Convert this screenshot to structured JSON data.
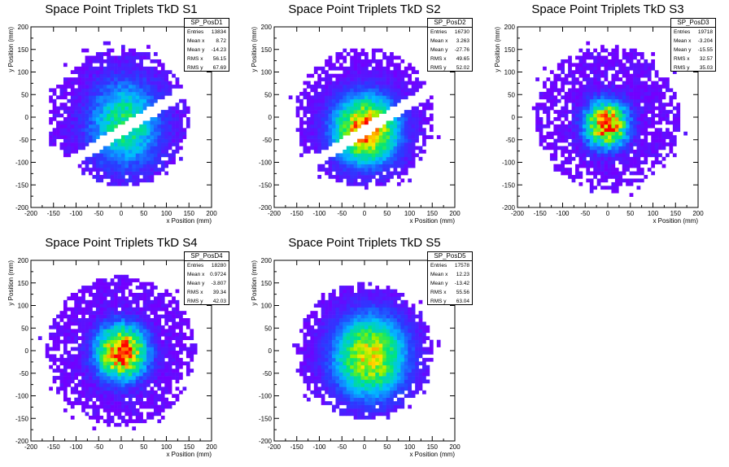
{
  "chart_data": [
    {
      "type": "heatmap",
      "title": "Space Point Triplets TkD S1",
      "xlabel": "x Position (mm)",
      "ylabel": "y Position (mm)",
      "xlim": [
        -200,
        200
      ],
      "ylim": [
        -200,
        200
      ],
      "xticks": [
        -200,
        -150,
        -100,
        -50,
        0,
        50,
        100,
        150,
        200
      ],
      "yticks": [
        -200,
        -150,
        -100,
        -50,
        0,
        50,
        100,
        150,
        200
      ],
      "stats": {
        "name": "SP_PosD1",
        "rows": [
          {
            "label": "Entries",
            "value": "13834"
          },
          {
            "label": "Mean x",
            "value": "8.72"
          },
          {
            "label": "Mean y",
            "value": "-14.23"
          },
          {
            "label": "RMS x",
            "value": "56.15"
          },
          {
            "label": "RMS y",
            "value": "67.69"
          }
        ]
      }
    },
    {
      "type": "heatmap",
      "title": "Space Point Triplets TkD S2",
      "xlabel": "x Position (mm)",
      "ylabel": "y Position (mm)",
      "xlim": [
        -200,
        200
      ],
      "ylim": [
        -200,
        200
      ],
      "xticks": [
        -200,
        -150,
        -100,
        -50,
        0,
        50,
        100,
        150,
        200
      ],
      "yticks": [
        -200,
        -150,
        -100,
        -50,
        0,
        50,
        100,
        150,
        200
      ],
      "stats": {
        "name": "SP_PosD2",
        "rows": [
          {
            "label": "Entries",
            "value": "16730"
          },
          {
            "label": "Mean x",
            "value": "3.263"
          },
          {
            "label": "Mean y",
            "value": "-27.76"
          },
          {
            "label": "RMS x",
            "value": "49.65"
          },
          {
            "label": "RMS y",
            "value": "52.02"
          }
        ]
      }
    },
    {
      "type": "heatmap",
      "title": "Space Point Triplets TkD S3",
      "xlabel": "x Position (mm)",
      "ylabel": "y Position (mm)",
      "xlim": [
        -200,
        200
      ],
      "ylim": [
        -200,
        200
      ],
      "xticks": [
        -200,
        -150,
        -100,
        -50,
        0,
        50,
        100,
        150,
        200
      ],
      "yticks": [
        -200,
        -150,
        -100,
        -50,
        0,
        50,
        100,
        150,
        200
      ],
      "stats": {
        "name": "SP_PosD3",
        "rows": [
          {
            "label": "Entries",
            "value": "19718"
          },
          {
            "label": "Mean x",
            "value": "-3.204"
          },
          {
            "label": "Mean y",
            "value": "-15.55"
          },
          {
            "label": "RMS x",
            "value": "32.57"
          },
          {
            "label": "RMS y",
            "value": "35.03"
          }
        ]
      }
    },
    {
      "type": "heatmap",
      "title": "Space Point Triplets TkD S4",
      "xlabel": "x Position (mm)",
      "ylabel": "y Position (mm)",
      "xlim": [
        -200,
        200
      ],
      "ylim": [
        -200,
        200
      ],
      "xticks": [
        -200,
        -150,
        -100,
        -50,
        0,
        50,
        100,
        150,
        200
      ],
      "yticks": [
        -200,
        -150,
        -100,
        -50,
        0,
        50,
        100,
        150,
        200
      ],
      "stats": {
        "name": "SP_PosD4",
        "rows": [
          {
            "label": "Entries",
            "value": "18280"
          },
          {
            "label": "Mean x",
            "value": "0.9724"
          },
          {
            "label": "Mean y",
            "value": "-3.807"
          },
          {
            "label": "RMS x",
            "value": "39.34"
          },
          {
            "label": "RMS y",
            "value": "42.03"
          }
        ]
      }
    },
    {
      "type": "heatmap",
      "title": "Space Point Triplets TkD S5",
      "xlabel": "x Position (mm)",
      "ylabel": "y Position (mm)",
      "xlim": [
        -200,
        200
      ],
      "ylim": [
        -200,
        200
      ],
      "xticks": [
        -200,
        -150,
        -100,
        -50,
        0,
        50,
        100,
        150,
        200
      ],
      "yticks": [
        -200,
        -150,
        -100,
        -50,
        0,
        50,
        100,
        150,
        200
      ],
      "stats": {
        "name": "SP_PosD5",
        "rows": [
          {
            "label": "Entries",
            "value": "17578"
          },
          {
            "label": "Mean x",
            "value": "12.23"
          },
          {
            "label": "Mean y",
            "value": "-13.42"
          },
          {
            "label": "RMS x",
            "value": "55.56"
          },
          {
            "label": "RMS y",
            "value": "63.04"
          }
        ]
      }
    }
  ]
}
